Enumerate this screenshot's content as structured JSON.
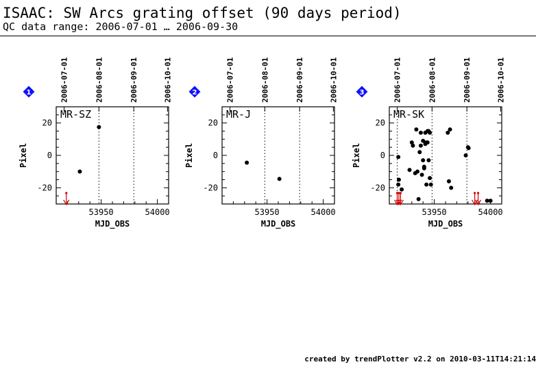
{
  "header": {
    "title": "ISAAC: SW Arcs grating offset (90 days period)",
    "subtitle": "QC data range: 2006-07-01 … 2006-09-30"
  },
  "footer": {
    "text": "created by trendPlotter v2.2 on 2010-03-11T14:21:14"
  },
  "colors": {
    "badge": "#1010ff",
    "marker": "#000000",
    "outlier": "#cc0000"
  },
  "chart_data": [
    {
      "type": "scatter",
      "badge": "1",
      "label": "MR-SZ",
      "xlabel": "MJD_OBS",
      "ylabel": "Pixel",
      "xlim": [
        53910,
        54010
      ],
      "ylim": [
        -30,
        30
      ],
      "xticks": [
        53950,
        54000
      ],
      "yticks": [
        20,
        0,
        -20
      ],
      "date_ticks": [
        {
          "mjd": 53917,
          "label": "2006-07-01"
        },
        {
          "mjd": 53948,
          "label": "2006-08-01"
        },
        {
          "mjd": 53979,
          "label": "2006-09-01"
        },
        {
          "mjd": 54009,
          "label": "2006-10-01"
        }
      ],
      "vlines": [
        53948,
        53979
      ],
      "points": [
        [
          53931,
          -10
        ],
        [
          53948,
          17.5
        ]
      ],
      "outliers_below": [
        53919
      ]
    },
    {
      "type": "scatter",
      "badge": "2",
      "label": "MR-J",
      "xlabel": "MJD_OBS",
      "ylabel": "Pixel",
      "xlim": [
        53910,
        54010
      ],
      "ylim": [
        -30,
        30
      ],
      "xticks": [
        53950,
        54000
      ],
      "yticks": [
        20,
        0,
        -20
      ],
      "date_ticks": [
        {
          "mjd": 53917,
          "label": "2006-07-01"
        },
        {
          "mjd": 53948,
          "label": "2006-08-01"
        },
        {
          "mjd": 53979,
          "label": "2006-09-01"
        },
        {
          "mjd": 54009,
          "label": "2006-10-01"
        }
      ],
      "vlines": [
        53948,
        53979
      ],
      "points": [
        [
          53932,
          -4.5
        ],
        [
          53961,
          -14.5
        ]
      ],
      "outliers_below": []
    },
    {
      "type": "scatter",
      "badge": "3",
      "label": "MR-SK",
      "xlabel": "MJD_OBS",
      "ylabel": "Pixel",
      "xlim": [
        53910,
        54010
      ],
      "ylim": [
        -30,
        30
      ],
      "xticks": [
        53950,
        54000
      ],
      "yticks": [
        20,
        0,
        -20
      ],
      "date_ticks": [
        {
          "mjd": 53917,
          "label": "2006-07-01"
        },
        {
          "mjd": 53948,
          "label": "2006-08-01"
        },
        {
          "mjd": 53979,
          "label": "2006-09-01"
        },
        {
          "mjd": 54009,
          "label": "2006-10-01"
        }
      ],
      "vlines": [
        53917,
        53948,
        53979
      ],
      "points": [
        [
          53918,
          -1
        ],
        [
          53918.5,
          -15
        ],
        [
          53918,
          -18
        ],
        [
          53921,
          -21
        ],
        [
          53928,
          -9
        ],
        [
          53930,
          8
        ],
        [
          53931,
          6
        ],
        [
          53933,
          -11
        ],
        [
          53934,
          16
        ],
        [
          53935,
          -10
        ],
        [
          53936,
          -27
        ],
        [
          53937,
          2
        ],
        [
          53938,
          14
        ],
        [
          53938,
          6
        ],
        [
          53939,
          -12
        ],
        [
          53940,
          9
        ],
        [
          53940,
          -3
        ],
        [
          53941,
          -7
        ],
        [
          53941,
          -8
        ],
        [
          53942,
          14
        ],
        [
          53942,
          7
        ],
        [
          53943,
          8
        ],
        [
          53943,
          -18
        ],
        [
          53944,
          15
        ],
        [
          53944,
          8
        ],
        [
          53945,
          -3
        ],
        [
          53945,
          15
        ],
        [
          53946,
          14
        ],
        [
          53946,
          -14
        ],
        [
          53947,
          -18
        ],
        [
          53962,
          14
        ],
        [
          53963,
          -16
        ],
        [
          53964,
          16
        ],
        [
          53965,
          -20
        ],
        [
          53978,
          0
        ],
        [
          53980,
          5
        ],
        [
          53980.5,
          4.5
        ],
        [
          53997,
          -28
        ],
        [
          54000,
          -28
        ]
      ],
      "outliers_below": [
        53917,
        53918.5,
        53920,
        53986,
        53989
      ]
    }
  ]
}
